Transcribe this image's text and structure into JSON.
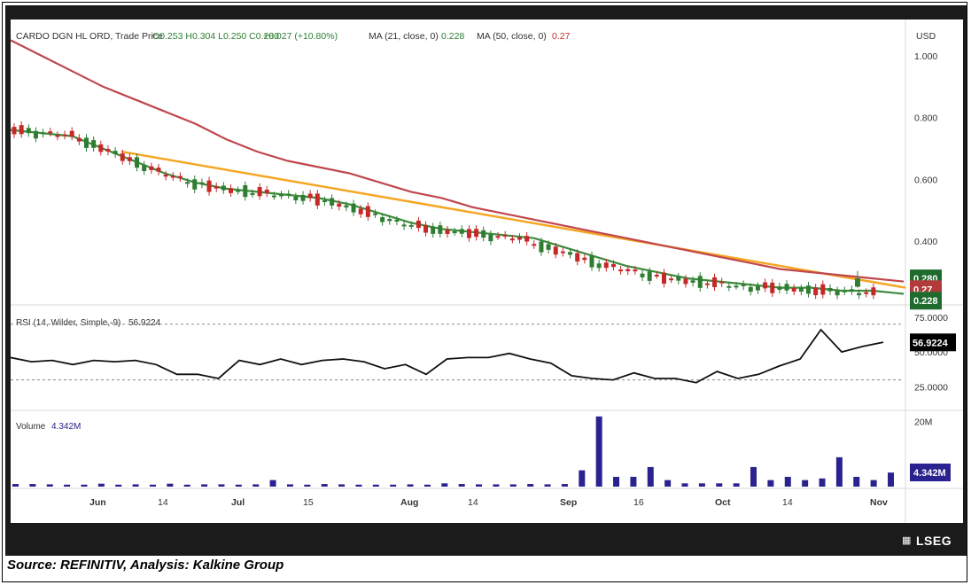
{
  "header": {
    "symbol": "CARDO DGN HL ORD, Trade Price",
    "ohlc": "O0.253 H0.304 L0.250 C0.280",
    "change": "+0.027 (+10.80%)",
    "ma21_label": "MA (21, close, 0)",
    "ma21_value": "0.228",
    "ma50_label": "MA (50, close, 0)",
    "ma50_value": "0.27",
    "currency": "USD"
  },
  "price_axis": {
    "ticks": [
      "1.000",
      "0.800",
      "0.600",
      "0.400"
    ]
  },
  "price_tags": {
    "close": "0.280",
    "ma50": "0.27",
    "ma21": "0.228"
  },
  "rsi": {
    "label": "RSI (14, Wilder, Simple,-9)",
    "value": "56.9224",
    "ticks": [
      "75.0000",
      "50.0000",
      "25.0000"
    ],
    "tag": "56.9224"
  },
  "volume": {
    "label": "Volume",
    "value": "4.342M",
    "ticks": [
      "20M"
    ],
    "tag": "4.342M"
  },
  "x_axis": {
    "labels": [
      "Jun",
      "14",
      "Jul",
      "15",
      "Aug",
      "14",
      "Sep",
      "16",
      "Oct",
      "14",
      "Nov"
    ]
  },
  "colors": {
    "up": "#2e7d32",
    "down": "#c62828",
    "ma21": "#3d8b3d",
    "ma50": "#c0474d",
    "trendline": "#f5a623",
    "rsi": "#111111",
    "volume": "#2a228f"
  },
  "footer": {
    "brand": "LSEG",
    "source": "Source: REFINITIV, Analysis: Kalkine Group"
  },
  "chart_data": [
    {
      "type": "candlestick",
      "title": "CARDO DGN HL ORD, Trade Price",
      "ylabel": "USD",
      "ylim": [
        0.2,
        1.1
      ],
      "series": [
        {
          "name": "MA (21, close, 0)",
          "values": [
            0.76,
            0.75,
            0.74,
            0.7,
            0.66,
            0.62,
            0.59,
            0.57,
            0.56,
            0.55,
            0.54,
            0.52,
            0.49,
            0.46,
            0.44,
            0.43,
            0.42,
            0.41,
            0.38,
            0.35,
            0.32,
            0.3,
            0.28,
            0.27,
            0.26,
            0.25,
            0.25,
            0.24,
            0.24,
            0.23
          ]
        },
        {
          "name": "MA (50, close, 0)",
          "values": [
            1.05,
            1.0,
            0.95,
            0.9,
            0.86,
            0.82,
            0.78,
            0.73,
            0.69,
            0.66,
            0.64,
            0.62,
            0.59,
            0.56,
            0.54,
            0.51,
            0.49,
            0.47,
            0.45,
            0.43,
            0.41,
            0.39,
            0.37,
            0.35,
            0.33,
            0.31,
            0.3,
            0.29,
            0.28,
            0.27
          ]
        }
      ],
      "trendline": {
        "from": 0.69,
        "to": 0.25
      },
      "last": {
        "open": 0.253,
        "high": 0.304,
        "low": 0.25,
        "close": 0.28
      }
    },
    {
      "type": "line",
      "title": "RSI (14, Wilder, Simple,-9)",
      "ylim": [
        10,
        80
      ],
      "values": [
        46,
        43,
        44,
        41,
        44,
        43,
        44,
        41,
        34,
        34,
        31,
        44,
        41,
        45,
        41,
        44,
        45,
        43,
        38,
        41,
        34,
        45,
        46,
        46,
        49,
        45,
        42,
        33,
        31,
        30,
        35,
        31,
        31,
        28,
        36,
        31,
        34,
        40,
        45,
        66,
        50,
        54,
        57
      ],
      "guides": [
        70,
        30
      ]
    },
    {
      "type": "bar",
      "title": "Volume",
      "values_m": [
        0.8,
        0.8,
        0.7,
        0.6,
        0.6,
        0.9,
        0.6,
        0.7,
        0.6,
        0.9,
        0.6,
        0.7,
        0.7,
        0.6,
        0.7,
        2.0,
        0.7,
        0.6,
        0.8,
        0.7,
        0.6,
        0.6,
        0.6,
        0.7,
        0.6,
        1.0,
        0.8,
        0.7,
        0.7,
        0.7,
        0.8,
        0.7,
        0.8,
        5.0,
        21.5,
        3.0,
        3.0,
        6.0,
        2.0,
        1.0,
        1.0,
        1.0,
        1.0,
        6.0,
        2.0,
        3.0,
        2.0,
        2.5,
        9.0,
        3.0,
        2.0,
        4.3
      ]
    }
  ]
}
